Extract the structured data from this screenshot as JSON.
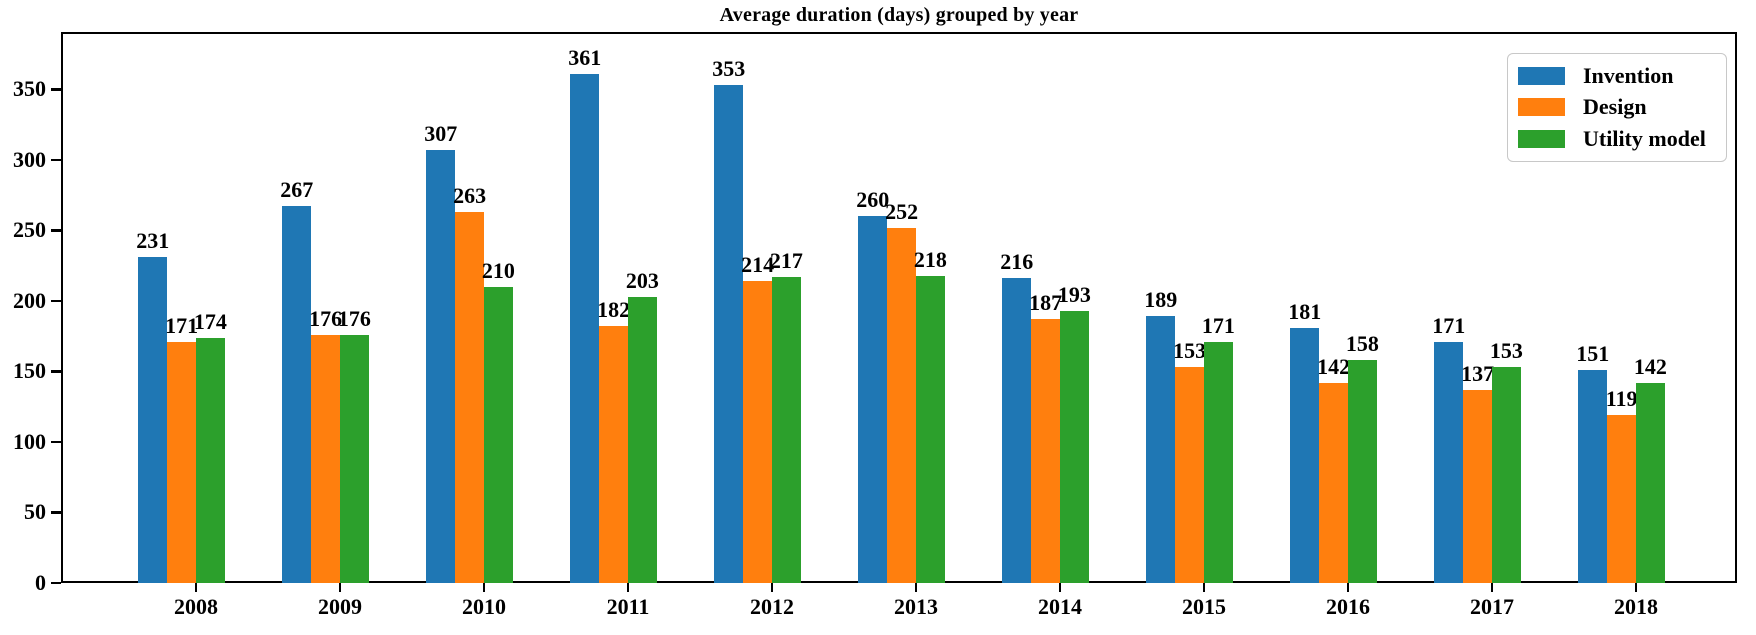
{
  "title": "Average duration (days) grouped by year",
  "chart_data": {
    "type": "bar",
    "title": "Average duration (days) grouped by year",
    "categories": [
      "2008",
      "2009",
      "2010",
      "2011",
      "2012",
      "2013",
      "2014",
      "2015",
      "2016",
      "2017",
      "2018"
    ],
    "series": [
      {
        "name": "Invention",
        "color": "#1f77b4",
        "values": [
          231,
          267,
          307,
          361,
          353,
          260,
          216,
          189,
          181,
          171,
          151
        ]
      },
      {
        "name": "Design",
        "color": "#ff7f0e",
        "values": [
          171,
          176,
          263,
          182,
          214,
          252,
          187,
          153,
          142,
          137,
          119
        ]
      },
      {
        "name": "Utility model",
        "color": "#2ca02c",
        "values": [
          174,
          176,
          210,
          203,
          217,
          218,
          193,
          171,
          158,
          153,
          142
        ]
      }
    ],
    "xlabel": "",
    "ylabel": "",
    "ylim": [
      0,
      390
    ],
    "yticks": [
      0,
      50,
      100,
      150,
      200,
      250,
      300,
      350
    ],
    "bar_value_labels": true,
    "grid": false,
    "legend": {
      "position": "upper right",
      "entries": [
        "Invention",
        "Design",
        "Utility model"
      ]
    },
    "axis_color": "#000000",
    "text_color": "#000000"
  }
}
